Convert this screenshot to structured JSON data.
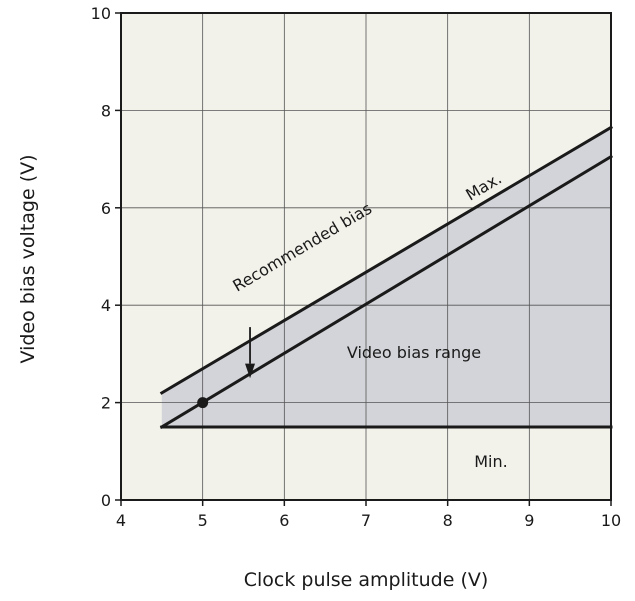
{
  "chart_data": {
    "type": "line",
    "xlabel": "Clock pulse amplitude (V)",
    "ylabel": "Video bias voltage (V)",
    "xlim": [
      4,
      10
    ],
    "ylim": [
      0,
      10
    ],
    "x_ticks": [
      "4",
      "5",
      "6",
      "7",
      "8",
      "9",
      "10"
    ],
    "y_ticks": [
      "0",
      "2",
      "4",
      "6",
      "8",
      "10"
    ],
    "grid": true,
    "colors": {
      "plot_bg": "#f2f1ea",
      "range_fill": "#d3d4d9",
      "line": "#1a1a1a",
      "grid": "#555555"
    },
    "series": [
      {
        "name": "Max.",
        "x": [
          4.5,
          10
        ],
        "y": [
          2.2,
          7.65
        ]
      },
      {
        "name": "Recommended bias",
        "x": [
          4.5,
          10
        ],
        "y": [
          1.5,
          7.05
        ]
      },
      {
        "name": "Min.",
        "x": [
          4.5,
          10
        ],
        "y": [
          1.5,
          1.5
        ]
      }
    ],
    "shaded_region": {
      "label": "Video bias range",
      "x": [
        4.5,
        10
      ],
      "upper": [
        2.2,
        7.65
      ],
      "lower": [
        1.5,
        1.5
      ]
    },
    "marker": {
      "x": 5,
      "y": 2.0
    },
    "annotations": {
      "max": "Max.",
      "recommended": "Recommended bias",
      "range": "Video bias range",
      "min": "Min."
    }
  }
}
